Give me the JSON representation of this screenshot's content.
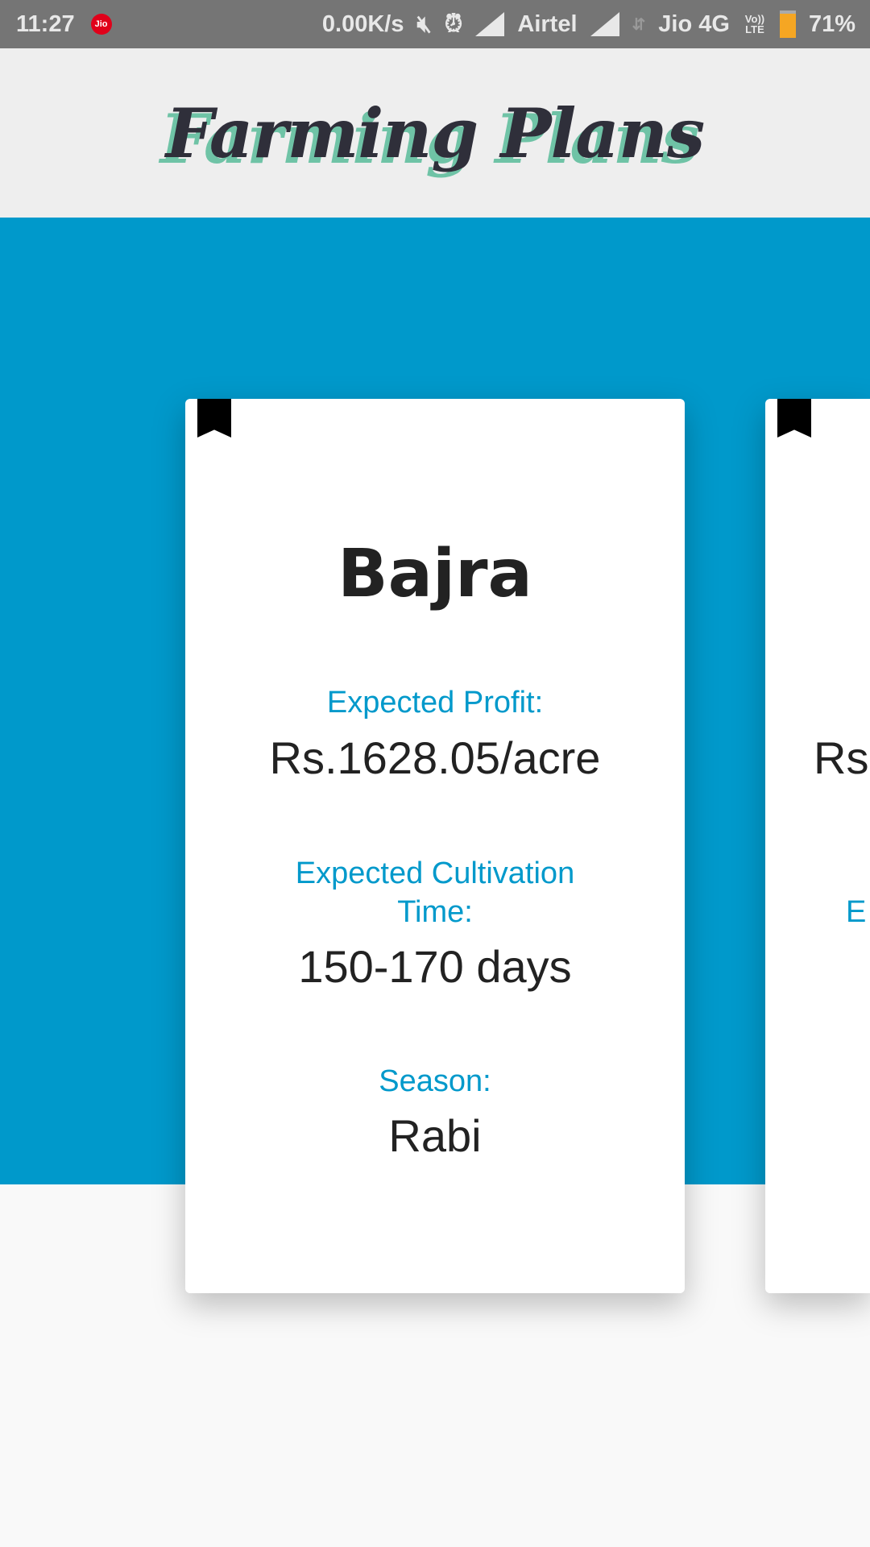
{
  "status_bar": {
    "time": "11:27",
    "jio_badge": "Jio",
    "speed": "0.00K/s",
    "carrier1": "Airtel",
    "carrier2": "Jio 4G",
    "volte": "Vo)) LTE",
    "battery": "71%"
  },
  "header": {
    "title": "Farming Plans"
  },
  "cards": [
    {
      "name": "Bajra",
      "profit_label": "Expected Profit:",
      "profit": "Rs.1628.05/acre",
      "time_label": "Expected Cultivation Time:",
      "time": "150-170 days",
      "season_label": "Season:",
      "season": "Rabi"
    },
    {
      "profit_fragment": "Rs",
      "time_label_fragment": "E"
    }
  ],
  "colors": {
    "accent": "#0099cb",
    "status_bar": "#757575",
    "header": "#eeeeee"
  }
}
